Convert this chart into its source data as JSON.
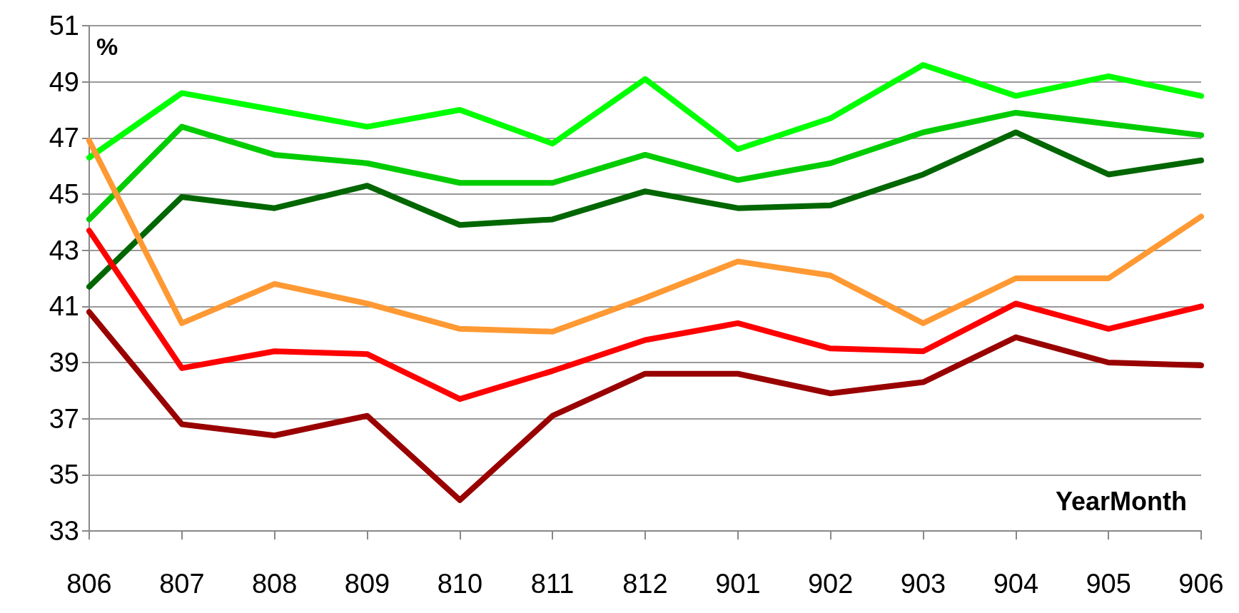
{
  "chart_data": {
    "type": "line",
    "xlabel": "YearMonth",
    "ylabel": "%",
    "categories": [
      "806",
      "807",
      "808",
      "809",
      "810",
      "811",
      "812",
      "901",
      "902",
      "903",
      "904",
      "905",
      "906"
    ],
    "series": [
      {
        "color": "#00ff00",
        "values": [
          46.3,
          48.6,
          48.0,
          47.4,
          48.0,
          46.8,
          49.1,
          46.6,
          47.7,
          49.6,
          48.5,
          49.2,
          48.5
        ]
      },
      {
        "color": "#00cc00",
        "values": [
          44.1,
          47.4,
          46.4,
          46.1,
          45.4,
          45.4,
          46.4,
          45.5,
          46.1,
          47.2,
          47.9,
          47.5,
          47.1
        ]
      },
      {
        "color": "#006600",
        "values": [
          41.7,
          44.9,
          44.5,
          45.3,
          43.9,
          44.1,
          45.1,
          44.5,
          44.6,
          45.7,
          47.2,
          45.7,
          46.2
        ]
      },
      {
        "color": "#ff9933",
        "values": [
          46.9,
          40.4,
          41.8,
          41.1,
          40.2,
          40.1,
          41.3,
          42.6,
          42.1,
          40.4,
          42.0,
          42.0,
          44.2
        ]
      },
      {
        "color": "#ff0000",
        "values": [
          43.7,
          38.8,
          39.4,
          39.3,
          37.7,
          38.7,
          39.8,
          40.4,
          39.5,
          39.4,
          41.1,
          40.2,
          41.0
        ]
      },
      {
        "color": "#990000",
        "values": [
          40.8,
          36.8,
          36.4,
          37.1,
          34.1,
          37.1,
          38.6,
          38.6,
          37.9,
          38.3,
          39.9,
          39.0,
          38.9
        ]
      }
    ],
    "ylim": [
      33,
      51
    ],
    "yticks": [
      33,
      35,
      37,
      39,
      41,
      43,
      45,
      47,
      49,
      51
    ],
    "grid": "y",
    "marker": "none",
    "line_style": "solid"
  }
}
